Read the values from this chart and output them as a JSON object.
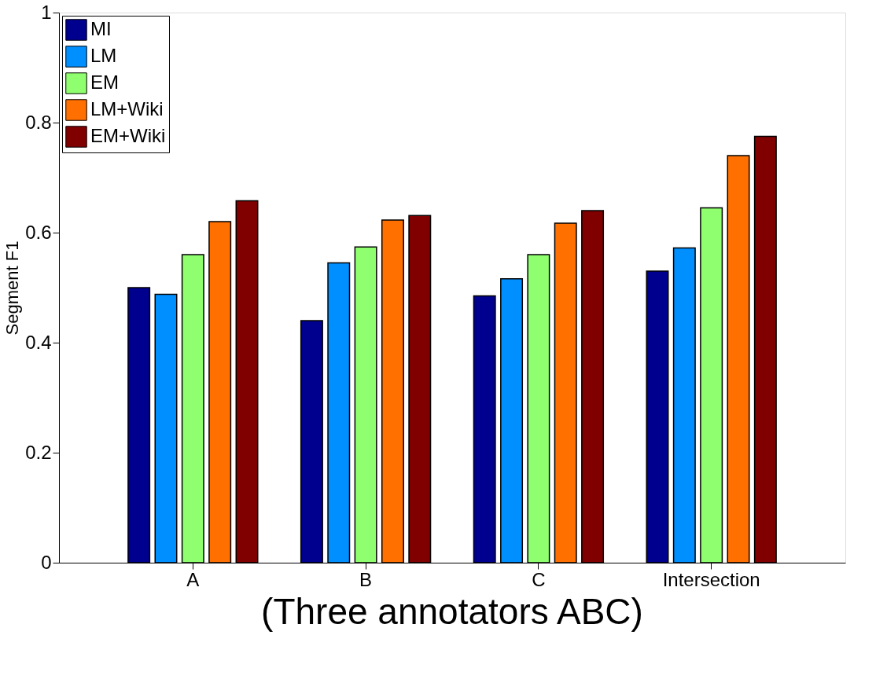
{
  "chart_data": {
    "type": "bar",
    "ylabel": "Segment F1",
    "categories": [
      "A",
      "B",
      "C",
      "Intersection"
    ],
    "series": [
      {
        "name": "MI",
        "color": "#00008f",
        "values": [
          0.5,
          0.44,
          0.485,
          0.53
        ]
      },
      {
        "name": "LM",
        "color": "#008fff",
        "values": [
          0.488,
          0.545,
          0.516,
          0.572
        ]
      },
      {
        "name": "EM",
        "color": "#8fff70",
        "values": [
          0.56,
          0.574,
          0.56,
          0.645
        ]
      },
      {
        "name": "LM+Wiki",
        "color": "#ff7000",
        "values": [
          0.62,
          0.623,
          0.617,
          0.74
        ]
      },
      {
        "name": "EM+Wiki",
        "color": "#800000",
        "values": [
          0.658,
          0.631,
          0.64,
          0.775
        ]
      }
    ],
    "ylim": [
      0,
      1
    ],
    "yticks": [
      0,
      0.2,
      0.4,
      0.6,
      0.8,
      1
    ],
    "legend": "top left",
    "grid": false,
    "annotations": [
      "(Three annotators ABC)"
    ]
  }
}
